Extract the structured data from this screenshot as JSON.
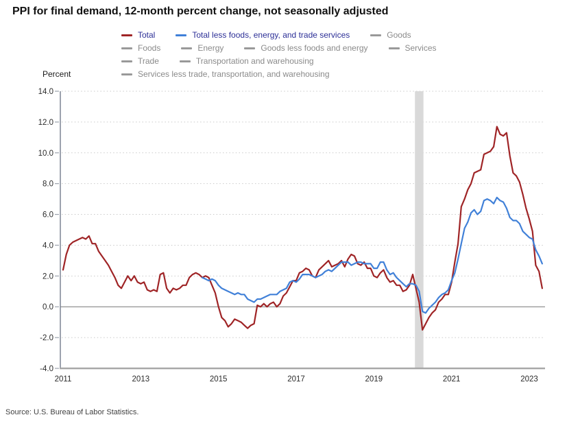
{
  "title": "PPI for final demand, 12-month percent change, not seasonally adjusted",
  "y_axis_title": "Percent",
  "source": "Source: U.S. Bureau of Labor Statistics.",
  "colors": {
    "total": "#9f2426",
    "core": "#4080d8",
    "inactive": "#999999",
    "legend_active_text": "#2b2e96",
    "legend_inactive_text": "#8a8a8a",
    "gridline": "#c9c9c9",
    "zero_line": "#8f8f8f",
    "axis_y": "#7b8494",
    "axis_x": "#a8a8a8",
    "tick": "#9aa0ab",
    "recession_band": "#d9d9d9"
  },
  "legend": {
    "rows": [
      [
        0,
        1,
        2
      ],
      [
        3,
        4,
        5,
        6
      ],
      [
        7,
        8
      ],
      [
        9
      ]
    ],
    "items": [
      {
        "label": "Total",
        "swatch": "total",
        "active": true
      },
      {
        "label": "Total less foods, energy, and trade services",
        "swatch": "core",
        "active": true
      },
      {
        "label": "Goods",
        "swatch": "inactive",
        "active": false
      },
      {
        "label": "Foods",
        "swatch": "inactive",
        "active": false
      },
      {
        "label": "Energy",
        "swatch": "inactive",
        "active": false
      },
      {
        "label": "Goods less foods and energy",
        "swatch": "inactive",
        "active": false
      },
      {
        "label": "Services",
        "swatch": "inactive",
        "active": false
      },
      {
        "label": "Trade",
        "swatch": "inactive",
        "active": false
      },
      {
        "label": "Transportation and warehousing",
        "swatch": "inactive",
        "active": false
      },
      {
        "label": "Services less trade, transportation, and warehousing",
        "swatch": "inactive",
        "active": false
      }
    ]
  },
  "chart_data": {
    "type": "line",
    "title": "PPI for final demand, 12-month percent change, not seasonally adjusted",
    "ylabel": "Percent",
    "frequency": "monthly",
    "x_start": "2011-01",
    "x_end": "2023-05",
    "ylim": [
      -4,
      14
    ],
    "grid": "dotted horizontal",
    "legend_position": "top",
    "y_tick_values": [
      14,
      12,
      10,
      8,
      6,
      4,
      2,
      0,
      -2,
      -4
    ],
    "y_tick_labels": [
      "14.0",
      "12.0",
      "10.0",
      "8.0",
      "6.0",
      "4.0",
      "2.0",
      "0.0",
      "-2.0",
      "-4.0"
    ],
    "x_tick_values": [
      2011,
      2013,
      2015,
      2017,
      2019,
      2021,
      2023
    ],
    "x_tick_labels": [
      "2011",
      "2013",
      "2015",
      "2017",
      "2019",
      "2021",
      "2023"
    ],
    "recession_band": {
      "start_month_index": 109,
      "end_month_index": 111,
      "period": "2020-02 to 2020-04"
    },
    "series": [
      {
        "name": "Total",
        "color_key": "total",
        "start_index": 0,
        "values": [
          2.4,
          3.4,
          4.0,
          4.2,
          4.3,
          4.4,
          4.5,
          4.4,
          4.6,
          4.1,
          4.1,
          3.6,
          3.3,
          3.0,
          2.7,
          2.3,
          1.9,
          1.4,
          1.2,
          1.6,
          2.0,
          1.7,
          2.0,
          1.6,
          1.5,
          1.6,
          1.1,
          1.0,
          1.1,
          1.0,
          2.1,
          2.2,
          1.2,
          0.9,
          1.2,
          1.1,
          1.2,
          1.4,
          1.4,
          1.9,
          2.1,
          2.2,
          2.1,
          1.9,
          2.0,
          1.9,
          1.4,
          0.9,
          0.0,
          -0.7,
          -0.9,
          -1.3,
          -1.1,
          -0.8,
          -0.9,
          -1.0,
          -1.2,
          -1.4,
          -1.2,
          -1.1,
          0.1,
          0.0,
          0.2,
          0.0,
          0.2,
          0.3,
          0.0,
          0.2,
          0.7,
          0.9,
          1.3,
          1.7,
          1.7,
          2.2,
          2.3,
          2.5,
          2.4,
          2.0,
          1.9,
          2.4,
          2.6,
          2.8,
          3.0,
          2.6,
          2.7,
          2.8,
          3.0,
          2.6,
          3.1,
          3.4,
          3.3,
          2.8,
          2.7,
          2.9,
          2.5,
          2.5,
          2.0,
          1.9,
          2.2,
          2.4,
          1.9,
          1.6,
          1.7,
          1.4,
          1.4,
          1.0,
          1.1,
          1.4,
          2.1,
          1.2,
          0.3,
          -1.5,
          -1.1,
          -0.7,
          -0.4,
          -0.2,
          0.3,
          0.5,
          0.8,
          0.8,
          1.6,
          2.9,
          4.1,
          6.5,
          7.0,
          7.6,
          8.0,
          8.7,
          8.8,
          8.9,
          9.9,
          10.0,
          10.1,
          10.4,
          11.7,
          11.2,
          11.1,
          11.3,
          9.8,
          8.7,
          8.5,
          8.1,
          7.3,
          6.4,
          5.7,
          4.9,
          2.7,
          2.3,
          1.2
        ]
      },
      {
        "name": "Total less foods, energy, and trade services",
        "color_key": "core",
        "start_index": 43,
        "values": [
          1.9,
          1.8,
          1.7,
          1.8,
          1.7,
          1.4,
          1.2,
          1.1,
          1.0,
          0.9,
          0.8,
          0.9,
          0.8,
          0.8,
          0.5,
          0.4,
          0.3,
          0.5,
          0.5,
          0.6,
          0.7,
          0.8,
          0.8,
          0.8,
          1.0,
          1.1,
          1.2,
          1.6,
          1.7,
          1.6,
          1.8,
          2.1,
          2.1,
          2.1,
          2.0,
          1.9,
          2.0,
          2.1,
          2.3,
          2.4,
          2.3,
          2.5,
          2.7,
          2.9,
          2.9,
          2.9,
          2.7,
          2.8,
          2.9,
          2.9,
          2.8,
          2.8,
          2.8,
          2.5,
          2.5,
          2.9,
          2.9,
          2.4,
          2.1,
          2.2,
          1.9,
          1.7,
          1.5,
          1.3,
          1.5,
          1.5,
          1.4,
          1.0,
          -0.3,
          -0.4,
          -0.1,
          0.1,
          0.3,
          0.6,
          0.8,
          0.9,
          1.1,
          1.7,
          2.2,
          3.1,
          4.1,
          5.1,
          5.5,
          6.1,
          6.3,
          6.0,
          6.2,
          6.9,
          7.0,
          6.9,
          6.7,
          7.1,
          6.9,
          6.8,
          6.4,
          5.8,
          5.6,
          5.6,
          5.4,
          4.9,
          4.7,
          4.5,
          4.4,
          3.7,
          3.3,
          2.8
        ]
      }
    ]
  }
}
